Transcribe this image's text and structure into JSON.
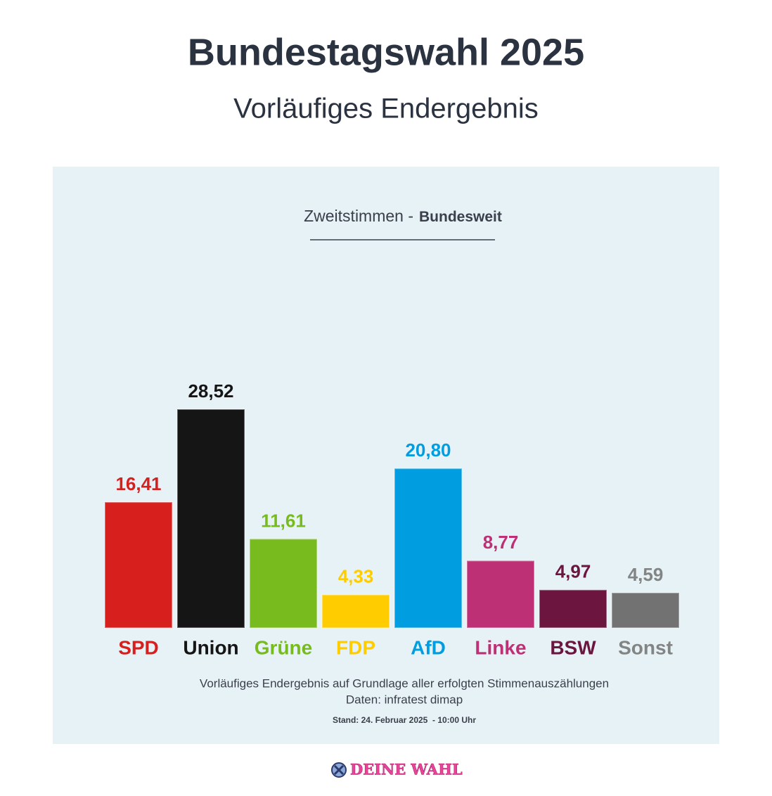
{
  "chart_data": {
    "type": "bar",
    "title": "Bundestagswahl 2025",
    "subtitle": "Vorläufiges Endergebnis",
    "chart_heading": "Zweitstimmen -",
    "chart_heading_bold": "Bundesweit",
    "categories": [
      "SPD",
      "Union",
      "Grüne",
      "FDP",
      "AfD",
      "Linke",
      "BSW",
      "Sonst"
    ],
    "values": [
      16.41,
      28.52,
      11.61,
      4.33,
      20.8,
      8.77,
      4.97,
      4.59
    ],
    "value_labels": [
      "16,41",
      "28,52",
      "11,61",
      "4,33",
      "20,80",
      "8,77",
      "4,97",
      "4,59"
    ],
    "colors": [
      "#d71f1d",
      "#151515",
      "#78bb1e",
      "#ffcc00",
      "#009ee0",
      "#be3075",
      "#6b153f",
      "#727272"
    ],
    "notes": [
      "Vorläufiges Endergebnis auf Grundlage aller erfolgten Stimmenauszählungen",
      "Daten: infratest dimap"
    ],
    "stand": "Stand: 24. Februar 2025  - 10:00 Uhr",
    "logo": "DEINE WAHL"
  }
}
